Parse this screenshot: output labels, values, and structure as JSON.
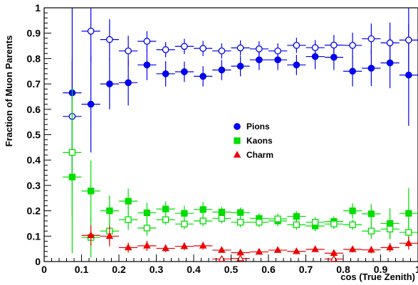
{
  "chart_data": {
    "type": "scatter",
    "title": "",
    "xlabel": "cos (True Zenith)",
    "ylabel": "Fraction of Muon Parents",
    "xlim": [
      0,
      1
    ],
    "ylim": [
      0,
      1
    ],
    "x_ticks": [
      "0",
      "0.1",
      "0.2",
      "0.3",
      "0.4",
      "0.5",
      "0.6",
      "0.7",
      "0.8",
      "0.9",
      "1"
    ],
    "y_ticks": [
      "0",
      "0.1",
      "0.2",
      "0.3",
      "0.4",
      "0.5",
      "0.6",
      "0.7",
      "0.8",
      "0.9",
      "1"
    ],
    "legend_position": "center-right",
    "colors": {
      "pions": "#0000ee",
      "kaons": "#00dd00",
      "charm": "#ee0000"
    },
    "series": [
      {
        "name": "Pions",
        "style": "filled-circle",
        "x": [
          0.075,
          0.125,
          0.175,
          0.225,
          0.275,
          0.325,
          0.375,
          0.425,
          0.475,
          0.525,
          0.575,
          0.625,
          0.675,
          0.725,
          0.775,
          0.825,
          0.875,
          0.925,
          0.975
        ],
        "y": [
          0.665,
          0.62,
          0.7,
          0.705,
          0.775,
          0.74,
          0.748,
          0.73,
          0.755,
          0.77,
          0.795,
          0.795,
          0.775,
          0.808,
          0.805,
          0.75,
          0.762,
          0.783,
          0.735
        ],
        "err": [
          0.35,
          0.19,
          0.1,
          0.09,
          0.06,
          0.05,
          0.04,
          0.04,
          0.04,
          0.04,
          0.04,
          0.04,
          0.04,
          0.05,
          0.05,
          0.06,
          0.07,
          0.1,
          0.2
        ]
      },
      {
        "name": "",
        "style": "open-circle",
        "x": [
          0.075,
          0.125,
          0.175,
          0.225,
          0.275,
          0.325,
          0.375,
          0.425,
          0.475,
          0.525,
          0.575,
          0.625,
          0.675,
          0.725,
          0.775,
          0.825,
          0.875,
          0.925,
          0.975
        ],
        "y": [
          0.572,
          0.908,
          0.875,
          0.83,
          0.868,
          0.835,
          0.848,
          0.84,
          0.83,
          0.842,
          0.838,
          0.83,
          0.852,
          0.843,
          0.853,
          0.852,
          0.878,
          0.862,
          0.873
        ],
        "err": [
          0.22,
          0.12,
          0.08,
          0.06,
          0.04,
          0.03,
          0.03,
          0.03,
          0.03,
          0.03,
          0.03,
          0.03,
          0.03,
          0.03,
          0.04,
          0.05,
          0.06,
          0.08,
          0.14
        ]
      },
      {
        "name": "Kaons",
        "style": "filled-square",
        "x": [
          0.075,
          0.125,
          0.175,
          0.225,
          0.275,
          0.325,
          0.375,
          0.425,
          0.475,
          0.525,
          0.575,
          0.625,
          0.675,
          0.725,
          0.775,
          0.825,
          0.875,
          0.925,
          0.975
        ],
        "y": [
          0.333,
          0.278,
          0.2,
          0.238,
          0.192,
          0.207,
          0.19,
          0.205,
          0.195,
          0.193,
          0.17,
          0.16,
          0.178,
          0.14,
          0.158,
          0.2,
          0.188,
          0.15,
          0.19
        ],
        "err": [
          0.3,
          0.12,
          0.06,
          0.05,
          0.04,
          0.03,
          0.03,
          0.03,
          0.02,
          0.02,
          0.02,
          0.02,
          0.02,
          0.02,
          0.02,
          0.03,
          0.04,
          0.06,
          0.1
        ]
      },
      {
        "name": "",
        "style": "open-square",
        "x": [
          0.075,
          0.125,
          0.175,
          0.225,
          0.275,
          0.325,
          0.375,
          0.425,
          0.475,
          0.525,
          0.575,
          0.625,
          0.675,
          0.725,
          0.775,
          0.825,
          0.875,
          0.925,
          0.975
        ],
        "y": [
          0.43,
          0.095,
          0.12,
          0.165,
          0.132,
          0.165,
          0.148,
          0.16,
          0.17,
          0.155,
          0.155,
          0.168,
          0.145,
          0.155,
          0.148,
          0.145,
          0.12,
          0.128,
          0.115
        ],
        "err": [
          0.25,
          0.08,
          0.05,
          0.04,
          0.03,
          0.02,
          0.02,
          0.02,
          0.02,
          0.02,
          0.02,
          0.02,
          0.02,
          0.02,
          0.02,
          0.02,
          0.03,
          0.04,
          0.06
        ]
      },
      {
        "name": "Charm",
        "style": "filled-triangle",
        "x": [
          0.125,
          0.175,
          0.225,
          0.275,
          0.325,
          0.375,
          0.425,
          0.475,
          0.525,
          0.575,
          0.625,
          0.675,
          0.725,
          0.775,
          0.825,
          0.875,
          0.925,
          0.975
        ],
        "y": [
          0.103,
          0.1,
          0.055,
          0.062,
          0.052,
          0.06,
          0.062,
          0.045,
          0.035,
          0.038,
          0.045,
          0.04,
          0.048,
          0.033,
          0.048,
          0.046,
          0.055,
          0.072
        ],
        "err": [
          0.04,
          0.04,
          0.02,
          0.02,
          0.015,
          0.015,
          0.015,
          0.01,
          0.01,
          0.01,
          0.01,
          0.01,
          0.01,
          0.01,
          0.012,
          0.014,
          0.018,
          0.025
        ]
      },
      {
        "name": "",
        "style": "open-triangle",
        "x": [
          0.475,
          0.525,
          0.775
        ],
        "y": [
          0.01,
          0.012,
          0.01
        ],
        "err": [
          0.01,
          0.01,
          0.01
        ]
      }
    ]
  }
}
